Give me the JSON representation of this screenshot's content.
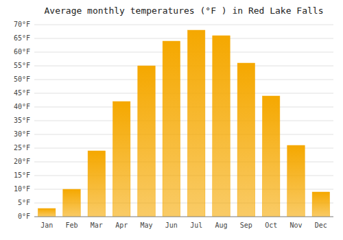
{
  "chart_data": {
    "type": "bar",
    "title": "Average monthly temperatures (°F ) in Red Lake Falls",
    "categories": [
      "Jan",
      "Feb",
      "Mar",
      "Apr",
      "May",
      "Jun",
      "Jul",
      "Aug",
      "Sep",
      "Oct",
      "Nov",
      "Dec"
    ],
    "values": [
      3,
      10,
      24,
      42,
      55,
      64,
      68,
      66,
      56,
      44,
      26,
      9
    ],
    "color": "#F5A800",
    "ylim": [
      0,
      70
    ],
    "yticks": [
      {
        "value": 0,
        "label": "0°F"
      },
      {
        "value": 5,
        "label": "5°F"
      },
      {
        "value": 10,
        "label": "10°F"
      },
      {
        "value": 15,
        "label": "15°F"
      },
      {
        "value": 20,
        "label": "20°F"
      },
      {
        "value": 25,
        "label": "25°F"
      },
      {
        "value": 30,
        "label": "30°F"
      },
      {
        "value": 35,
        "label": "35°F"
      },
      {
        "value": 40,
        "label": "40°F"
      },
      {
        "value": 45,
        "label": "45°F"
      },
      {
        "value": 50,
        "label": "50°F"
      },
      {
        "value": 55,
        "label": "55°F"
      },
      {
        "value": 60,
        "label": "60°F"
      },
      {
        "value": 65,
        "label": "65°F"
      },
      {
        "value": 70,
        "label": "70°F"
      }
    ],
    "grid": true
  }
}
